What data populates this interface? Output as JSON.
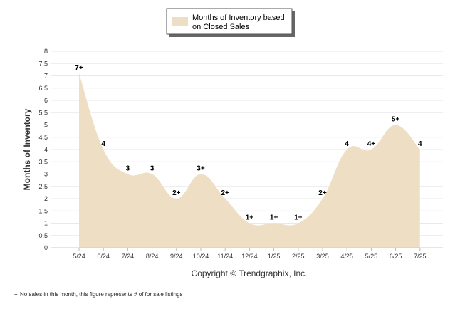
{
  "chart_data": {
    "type": "area",
    "title": "",
    "xlabel": "",
    "ylabel": "Months of Inventory",
    "ylim": [
      0,
      8
    ],
    "ytick_step": 0.5,
    "grid": true,
    "legend_position": "top-center",
    "categories": [
      "5/24",
      "6/24",
      "7/24",
      "8/24",
      "9/24",
      "10/24",
      "11/24",
      "12/24",
      "1/25",
      "2/25",
      "3/25",
      "4/25",
      "5/25",
      "6/25",
      "7/25"
    ],
    "series": [
      {
        "name": "Months of Inventory based on Closed Sales",
        "legend_lines": [
          "Months of Inventory based",
          "on Closed Sales"
        ],
        "color": "#EEDFC4",
        "values": [
          7.1,
          4.0,
          3.0,
          3.0,
          2.0,
          3.0,
          2.0,
          1.0,
          1.0,
          1.0,
          2.0,
          4.0,
          4.0,
          5.0,
          4.0
        ],
        "labels": [
          "7+",
          "4",
          "3",
          "3",
          "2+",
          "3+",
          "2+",
          "1+",
          "1+",
          "1+",
          "2+",
          "4",
          "4+",
          "5+",
          "4"
        ]
      }
    ]
  },
  "copyright": "Copyright © Trendgraphix, Inc.",
  "footnote": {
    "marker": "+",
    "text": "No sales in this month, this figure represents # of for sale listings"
  }
}
